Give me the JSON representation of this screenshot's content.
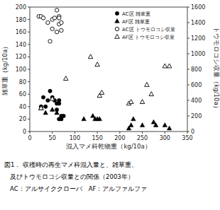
{
  "chart_data": {
    "type": "scatter",
    "xlabel": "混入マメ科乾物重（kg/10a）",
    "ylabel": "雑草重（kg/10a）",
    "y2label": "トウモロコシ収量（kg/10a）",
    "annotations": [
      "図1． 収穫時の再生マメ科混入量と、雑草重、",
      "   及びトウモロコシ収量との関係（2003年）",
      "   AC：アルサイククローバ　AF：アルファルファ"
    ],
    "xlim": [
      0,
      350
    ],
    "xticks": [
      0,
      50,
      100,
      150,
      200,
      250,
      300,
      350
    ],
    "ylim": [
      0,
      200
    ],
    "yticks": [
      0,
      20,
      40,
      60,
      80,
      100,
      120,
      140,
      160,
      180,
      200
    ],
    "y2lim": [
      0,
      1600
    ],
    "y2ticks": [
      0,
      200,
      400,
      600,
      800,
      1000,
      1200,
      1400,
      1600
    ],
    "legend": "upper right",
    "series": [
      {
        "name": "AC区 雑草重",
        "color": "#000000",
        "marker": "circle",
        "x": [
          25,
          30,
          35,
          40,
          45,
          50,
          55,
          60,
          60,
          65,
          65,
          65,
          70,
          70,
          75
        ],
        "values": [
          40,
          55,
          40,
          50,
          65,
          55,
          50,
          35,
          45,
          45,
          20,
          50,
          25,
          20,
          25
        ]
      },
      {
        "name": "AF区 雑草重",
        "color": "#000000",
        "marker": "triangle",
        "x": [
          35,
          50,
          60,
          120,
          140,
          145,
          150,
          155,
          220,
          225,
          230,
          250,
          275,
          280,
          300,
          310
        ],
        "values": [
          30,
          35,
          30,
          20,
          25,
          20,
          20,
          20,
          5,
          10,
          20,
          10,
          15,
          10,
          10,
          5
        ]
      },
      {
        "name": "AC区 トウモロコシ収量",
        "color": "#000000",
        "marker": "circle-open",
        "axis": "y2",
        "x": [
          20,
          25,
          30,
          40,
          45,
          50,
          50,
          55,
          60,
          60,
          65,
          65,
          65,
          70,
          70
        ],
        "values": [
          1480,
          1480,
          1460,
          1400,
          1160,
          1320,
          1440,
          1460,
          1560,
          1280,
          1480,
          1460,
          1380,
          1400,
          1300
        ]
      },
      {
        "name": "AF区 トウモロコシ収量",
        "color": "#000000",
        "marker": "triangle-open",
        "axis": "y2",
        "x": [
          25,
          25,
          50,
          80,
          135,
          150,
          155,
          160,
          220,
          225,
          250,
          260,
          270,
          300,
          310
        ],
        "values": [
          300,
          300,
          420,
          680,
          960,
          860,
          460,
          500,
          360,
          380,
          380,
          600,
          480,
          840,
          840
        ]
      }
    ]
  }
}
